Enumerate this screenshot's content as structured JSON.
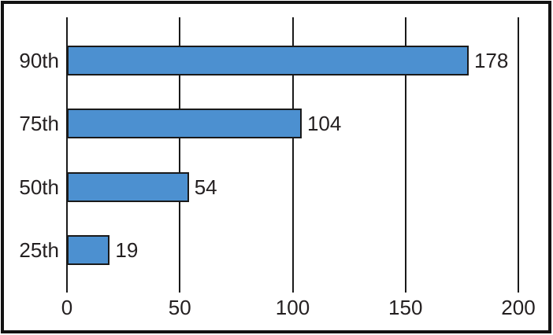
{
  "chart_data": {
    "type": "bar",
    "orientation": "horizontal",
    "title": "",
    "xlabel": "",
    "ylabel": "",
    "categories": [
      "90th",
      "75th",
      "50th",
      "25th"
    ],
    "values": [
      178,
      104,
      54,
      19
    ],
    "value_labels": [
      "178",
      "104",
      "54",
      "19"
    ],
    "xlim": [
      0,
      200
    ],
    "x_ticks": [
      0,
      50,
      100,
      150,
      200
    ],
    "x_tick_labels": [
      "0",
      "50",
      "100",
      "150",
      "200"
    ],
    "grid": "vertical-gridlines",
    "legend": "none",
    "colors": {
      "bar_fill": "#4C90D0",
      "bar_border": "#1A1A1A",
      "gridline": "#1A1A1A",
      "text": "#231F20",
      "frame_border": "#121212",
      "background": "#FFFFFF"
    }
  }
}
